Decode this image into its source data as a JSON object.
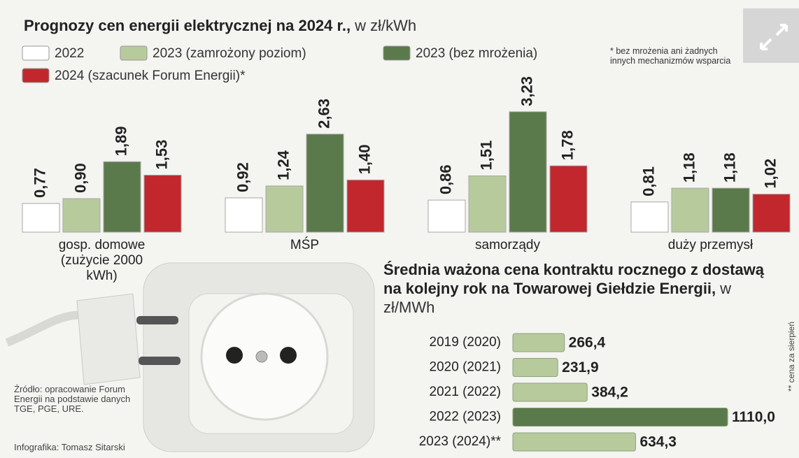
{
  "chart_data": [
    {
      "type": "bar",
      "title": "Prognozy cen energii elektrycznej na 2024 r.,",
      "unit": "w zł/kWh",
      "note": "* bez mrożenia ani żadnych innych mechanizmów wsparcia",
      "categories": [
        "gosp. domowe (zużycie 2000 kWh)",
        "MŚP",
        "samorządy",
        "duży przemysł"
      ],
      "series": [
        {
          "name": "2022",
          "color": "#ffffff",
          "values": [
            0.77,
            0.92,
            0.86,
            0.81
          ],
          "value_labels": [
            "0,77",
            "0,92",
            "0,86",
            "0,81"
          ]
        },
        {
          "name": "2023 (zamrożony poziom)",
          "color": "#b7ca9c",
          "values": [
            0.9,
            1.24,
            1.51,
            1.18
          ],
          "value_labels": [
            "0,90",
            "1,24",
            "1,51",
            "1,18"
          ]
        },
        {
          "name": "2023 (bez mrożenia)",
          "color": "#5b7a4b",
          "values": [
            1.89,
            2.63,
            3.23,
            1.18
          ],
          "value_labels": [
            "1,89",
            "2,63",
            "3,23",
            "1,18"
          ]
        },
        {
          "name": "2024 (szacunek Forum Energii)*",
          "color": "#c1272d",
          "values": [
            1.53,
            1.4,
            1.78,
            1.02
          ],
          "value_labels": [
            "1,53",
            "1,40",
            "1,78",
            "1,02"
          ]
        }
      ]
    },
    {
      "type": "hbar",
      "title": "Średnia ważona cena kontraktu rocznego z dostawą na kolejny rok na Towarowej Giełdzie Energii,",
      "unit": "w zł/MWh",
      "note": "** cena za sierpień",
      "categories": [
        "2019 (2020)",
        "2020 (2021)",
        "2021 (2022)",
        "2022 (2023)",
        "2023 (2024)**"
      ],
      "values": [
        266.4,
        231.9,
        384.2,
        1110.0,
        634.3
      ],
      "value_labels": [
        "266,4",
        "231,9",
        "384,2",
        "1110,0",
        "634,3"
      ],
      "colors": [
        "#b7ca9c",
        "#b7ca9c",
        "#b7ca9c",
        "#5b7a4b",
        "#b7ca9c"
      ]
    }
  ],
  "source": "Źródło: opracowanie Forum Energii na podstawie danych TGE, PGE, URE.",
  "credit": "Infografika: Tomasz Sitarski"
}
